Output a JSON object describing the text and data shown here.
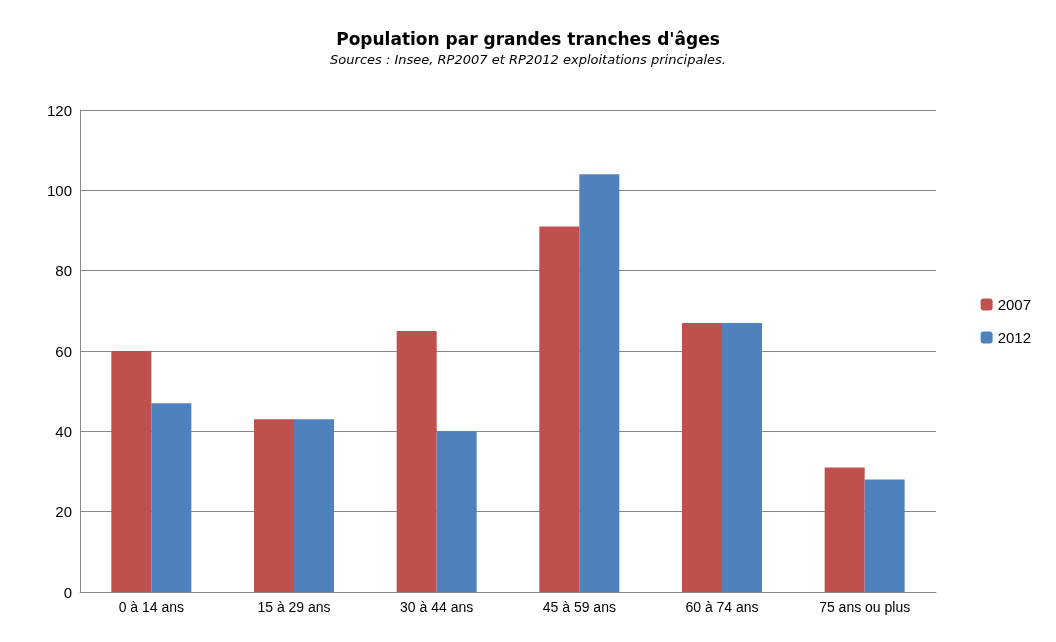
{
  "chart_data": {
    "type": "bar",
    "title": "Population par grandes tranches d'âges",
    "subtitle": "Sources : Insee, RP2007 et RP2012 exploitations principales.",
    "categories": [
      "0 à 14 ans",
      "15 à 29 ans",
      "30 à 44 ans",
      "45 à 59 ans",
      "60 à 74 ans",
      "75 ans ou plus"
    ],
    "series": [
      {
        "name": "2007",
        "color": "#c0504d",
        "values": [
          60,
          43,
          65,
          91,
          67,
          31
        ]
      },
      {
        "name": "2012",
        "color": "#4f81bd",
        "values": [
          47,
          43,
          40,
          104,
          67,
          28
        ]
      }
    ],
    "ylim": [
      0,
      120
    ],
    "yticks": [
      0,
      20,
      40,
      60,
      80,
      100,
      120
    ],
    "grid": "y",
    "legend": "right"
  }
}
